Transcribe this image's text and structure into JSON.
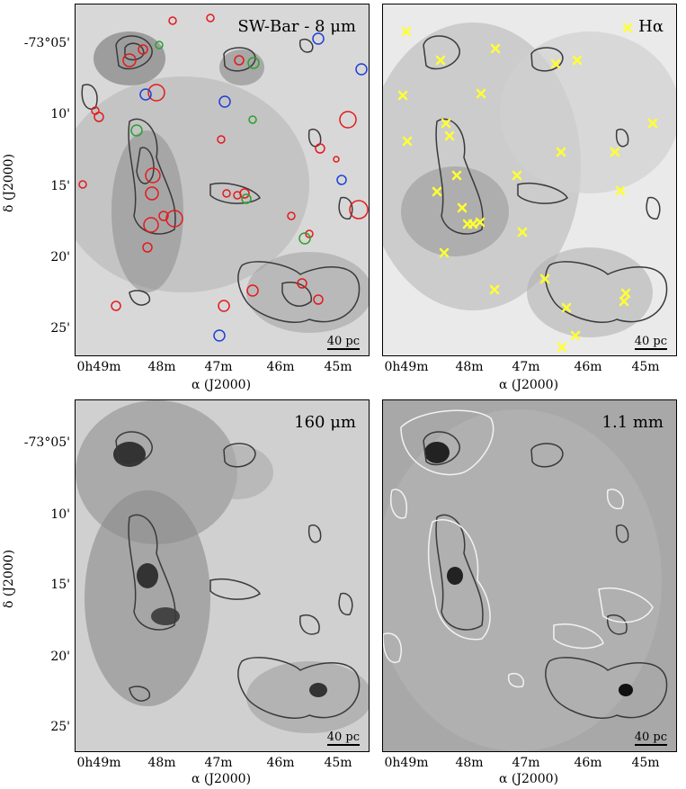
{
  "panels": [
    {
      "id": "tl",
      "title": "SW-Bar - 8 μm",
      "scale": "40 pc"
    },
    {
      "id": "tr",
      "title": "Hα",
      "scale": "40 pc"
    },
    {
      "id": "bl",
      "title": "160 μm",
      "scale": "40 pc"
    },
    {
      "id": "br",
      "title": "1.1 mm",
      "scale": "40 pc"
    }
  ],
  "axes": {
    "xlabel": "α (J2000)",
    "ylabel": "δ (J2000)",
    "xticks": [
      "0h49m",
      "48m",
      "47m",
      "46m",
      "45m"
    ],
    "yticks": [
      "-73°05'",
      "10'",
      "15'",
      "20'",
      "25'"
    ]
  },
  "colors": {
    "contour": "#3a3a3a",
    "contour_light": "#f2f2f2",
    "marker_red": "#e41a1c",
    "marker_green": "#2ca02c",
    "marker_blue": "#1f3fd6",
    "marker_yellow": "#ffff33"
  }
}
